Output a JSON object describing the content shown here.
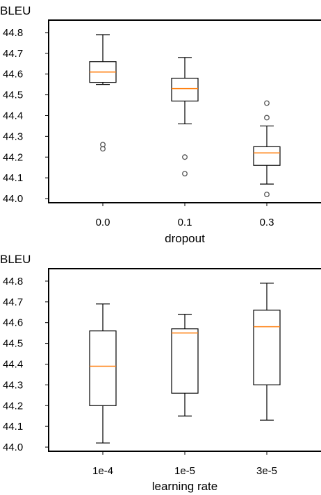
{
  "chart_data": [
    {
      "type": "box",
      "ylabel": "BLEU",
      "xlabel": "dropout",
      "categories": [
        "0.0",
        "0.1",
        "0.3"
      ],
      "yticks": [
        "44.0",
        "44.1",
        "44.2",
        "44.3",
        "44.4",
        "44.5",
        "44.6",
        "44.7",
        "44.8"
      ],
      "ylim": [
        43.98,
        44.86
      ],
      "grid": false,
      "boxes": [
        {
          "whisker_low": 44.55,
          "q1": 44.56,
          "median": 44.61,
          "q3": 44.66,
          "whisker_high": 44.79,
          "outliers": [
            44.24,
            44.26
          ]
        },
        {
          "whisker_low": 44.36,
          "q1": 44.47,
          "median": 44.53,
          "q3": 44.58,
          "whisker_high": 44.68,
          "outliers": [
            44.12,
            44.2
          ]
        },
        {
          "whisker_low": 44.07,
          "q1": 44.16,
          "median": 44.22,
          "q3": 44.25,
          "whisker_high": 44.35,
          "outliers": [
            44.02,
            44.39,
            44.46
          ]
        }
      ],
      "colors": {
        "median": "#ff7f0e",
        "box": "#000000",
        "outlier": "#555555"
      }
    },
    {
      "type": "box",
      "ylabel": "BLEU",
      "xlabel": "learning rate",
      "categories": [
        "1e-4",
        "1e-5",
        "3e-5"
      ],
      "yticks": [
        "44.0",
        "44.1",
        "44.2",
        "44.3",
        "44.4",
        "44.5",
        "44.6",
        "44.7",
        "44.8"
      ],
      "ylim": [
        43.98,
        44.86
      ],
      "grid": false,
      "boxes": [
        {
          "whisker_low": 44.02,
          "q1": 44.2,
          "median": 44.39,
          "q3": 44.56,
          "whisker_high": 44.69,
          "outliers": []
        },
        {
          "whisker_low": 44.15,
          "q1": 44.26,
          "median": 44.55,
          "q3": 44.57,
          "whisker_high": 44.64,
          "outliers": []
        },
        {
          "whisker_low": 44.13,
          "q1": 44.3,
          "median": 44.58,
          "q3": 44.66,
          "whisker_high": 44.79,
          "outliers": []
        }
      ],
      "colors": {
        "median": "#ff7f0e",
        "box": "#000000",
        "outlier": "#555555"
      }
    }
  ]
}
